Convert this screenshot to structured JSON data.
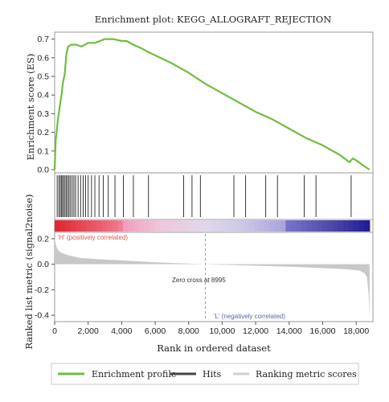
{
  "chart_data": {
    "type": "line",
    "title": "Enrichment plot: KEGG_ALLOGRAFT_REJECTION",
    "xlabel": "Rank in ordered dataset",
    "xlim": [
      0,
      19000
    ],
    "x_ticks": [
      "0",
      "2,000",
      "4,000",
      "6,000",
      "8,000",
      "10,000",
      "12,000",
      "14,000",
      "16,000",
      "18,000"
    ],
    "es_panel": {
      "ylabel": "Enrichment score (ES)",
      "ylim": [
        0,
        0.72
      ],
      "y_ticks": [
        "0.0",
        "0.1",
        "0.2",
        "0.3",
        "0.4",
        "0.5",
        "0.6",
        "0.7"
      ],
      "series": [
        {
          "name": "Enrichment profile",
          "color": "#6dbf3f",
          "x": [
            0,
            60,
            120,
            180,
            260,
            340,
            420,
            500,
            600,
            700,
            800,
            1000,
            1300,
            1600,
            2000,
            2400,
            2700,
            3000,
            3500,
            4000,
            4300,
            4700,
            5200,
            5600,
            7000,
            8000,
            9000,
            10000,
            11000,
            12000,
            13000,
            14000,
            15000,
            16000,
            17000,
            17600,
            17800,
            18000,
            18300,
            18800
          ],
          "y": [
            0.0,
            0.16,
            0.2,
            0.26,
            0.31,
            0.36,
            0.41,
            0.47,
            0.51,
            0.62,
            0.66,
            0.67,
            0.67,
            0.66,
            0.68,
            0.68,
            0.69,
            0.7,
            0.7,
            0.69,
            0.69,
            0.67,
            0.65,
            0.63,
            0.57,
            0.52,
            0.46,
            0.41,
            0.36,
            0.31,
            0.27,
            0.22,
            0.17,
            0.13,
            0.08,
            0.04,
            0.06,
            0.05,
            0.03,
            0.0
          ]
        }
      ]
    },
    "hits": {
      "name": "Hits",
      "color": "#222222",
      "x": [
        150,
        250,
        330,
        400,
        470,
        540,
        620,
        700,
        780,
        860,
        950,
        1050,
        1150,
        1250,
        1400,
        1550,
        1700,
        1850,
        2000,
        2200,
        2400,
        2650,
        2900,
        3200,
        3600,
        4100,
        4700,
        5600,
        7700,
        8200,
        8700,
        10700,
        11400,
        12600,
        13300,
        14900,
        15600,
        17700
      ]
    },
    "ranking": {
      "ylabel": "Ranked list metric (signal2noise)",
      "ylim": [
        -0.45,
        0.25
      ],
      "y_ticks": [
        "0.2",
        "0.0",
        "-0.2",
        "-0.4"
      ],
      "zero_cross_label": "Zero cross at 8995",
      "zero_cross": 8995,
      "pos_label": "'H' (positively correlated)",
      "neg_label": "'L' (negatively correlated)",
      "fill_color": "#c8c8c8",
      "x": [
        0,
        50,
        100,
        200,
        400,
        800,
        1500,
        2500,
        4000,
        6000,
        8000,
        8995,
        10000,
        12000,
        14000,
        16000,
        17500,
        18200,
        18500,
        18650,
        18750,
        18800
      ],
      "y": [
        0.22,
        0.17,
        0.14,
        0.11,
        0.09,
        0.07,
        0.05,
        0.04,
        0.03,
        0.015,
        0.005,
        0.0,
        -0.005,
        -0.012,
        -0.02,
        -0.03,
        -0.04,
        -0.05,
        -0.07,
        -0.1,
        -0.25,
        -0.43
      ]
    },
    "legend": {
      "placement": "bottom",
      "items": [
        {
          "label": "Enrichment profile",
          "color": "#6dbf3f"
        },
        {
          "label": "Hits",
          "color": "#444444"
        },
        {
          "label": "Ranking metric scores",
          "color": "#cfcfcf"
        }
      ]
    }
  }
}
